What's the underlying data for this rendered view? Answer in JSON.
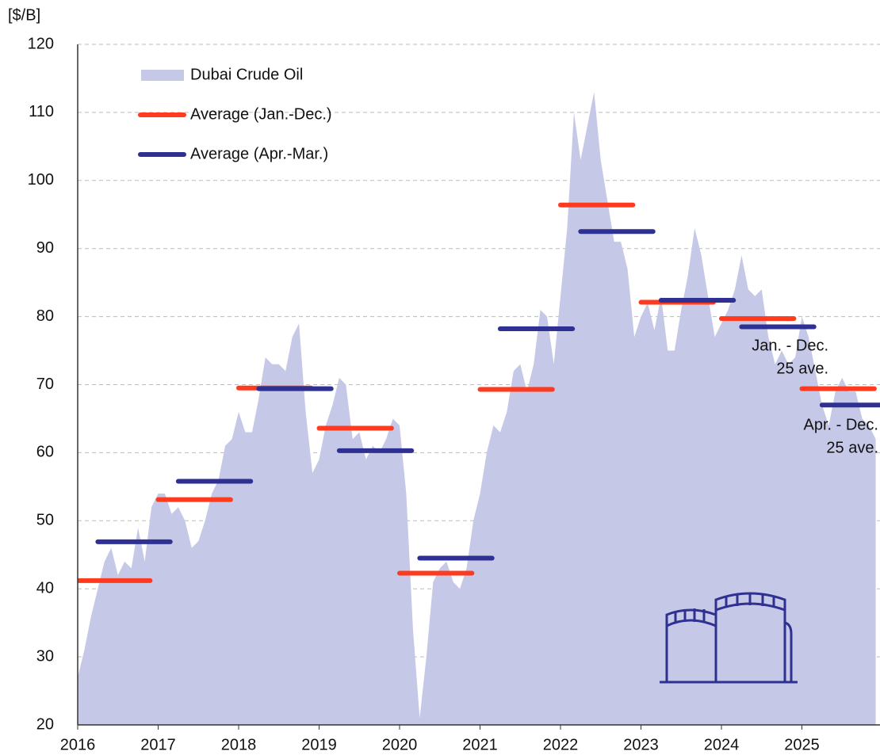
{
  "chart_data": {
    "type": "area",
    "y_unit": "[$/B]",
    "xlim": [
      2016,
      2026
    ],
    "xticks": [
      2016,
      2017,
      2018,
      2019,
      2020,
      2021,
      2022,
      2023,
      2024,
      2025
    ],
    "ylim": [
      20,
      120
    ],
    "yticks": [
      20,
      30,
      40,
      50,
      60,
      70,
      80,
      90,
      100,
      110,
      120
    ],
    "grid": true,
    "legend": "upper left",
    "x": [
      2016,
      2016.083,
      2016.167,
      2016.25,
      2016.333,
      2016.417,
      2016.5,
      2016.583,
      2016.667,
      2016.75,
      2016.833,
      2016.917,
      2017,
      2017.083,
      2017.167,
      2017.25,
      2017.333,
      2017.417,
      2017.5,
      2017.583,
      2017.667,
      2017.75,
      2017.833,
      2017.917,
      2018,
      2018.083,
      2018.167,
      2018.25,
      2018.333,
      2018.417,
      2018.5,
      2018.583,
      2018.667,
      2018.75,
      2018.833,
      2018.917,
      2019,
      2019.083,
      2019.167,
      2019.25,
      2019.333,
      2019.417,
      2019.5,
      2019.583,
      2019.667,
      2019.75,
      2019.833,
      2019.917,
      2020,
      2020.083,
      2020.167,
      2020.25,
      2020.333,
      2020.417,
      2020.5,
      2020.583,
      2020.667,
      2020.75,
      2020.833,
      2020.917,
      2021,
      2021.083,
      2021.167,
      2021.25,
      2021.333,
      2021.417,
      2021.5,
      2021.583,
      2021.667,
      2021.75,
      2021.833,
      2021.917,
      2022,
      2022.083,
      2022.167,
      2022.25,
      2022.333,
      2022.417,
      2022.5,
      2022.583,
      2022.667,
      2022.75,
      2022.833,
      2022.917,
      2023,
      2023.083,
      2023.167,
      2023.25,
      2023.333,
      2023.417,
      2023.5,
      2023.583,
      2023.667,
      2023.75,
      2023.833,
      2023.917,
      2024,
      2024.083,
      2024.167,
      2024.25,
      2024.333,
      2024.417,
      2024.5,
      2024.583,
      2024.667,
      2024.75,
      2024.833,
      2024.917,
      2025,
      2025.083,
      2025.167,
      2025.25,
      2025.333,
      2025.417,
      2025.5,
      2025.583,
      2025.667,
      2025.75,
      2025.833,
      2025.917
    ],
    "series": [
      {
        "name": "Dubai Crude Oil",
        "color": "#c6c8e7",
        "values": [
          27,
          31,
          36,
          40,
          44,
          46,
          42,
          44,
          43,
          49,
          44,
          52,
          54,
          54,
          51,
          52,
          50,
          46,
          47,
          50,
          54,
          56,
          61,
          62,
          66,
          63,
          63,
          68,
          74,
          73,
          73,
          72,
          77,
          79,
          66,
          57,
          59,
          64,
          67,
          71,
          70,
          62,
          63,
          59,
          61,
          60,
          62,
          65,
          64,
          54,
          34,
          21,
          30,
          41,
          43,
          44,
          41,
          40,
          43,
          50,
          54,
          60,
          64,
          63,
          66,
          72,
          73,
          69,
          73,
          81,
          80,
          73,
          83,
          93,
          110,
          103,
          108,
          113,
          103,
          97,
          91,
          91,
          87,
          77,
          80,
          82,
          78,
          83,
          75,
          75,
          81,
          86,
          93,
          89,
          83,
          77,
          79,
          81,
          84,
          89,
          84,
          83,
          84,
          77,
          73,
          75,
          73,
          74,
          80,
          77,
          72,
          67,
          64,
          69,
          71,
          69,
          69,
          65,
          64,
          62
        ]
      },
      {
        "name": "Average (Jan.-Dec.)",
        "color": "#ff3b1f",
        "type": "segments",
        "x": [
          2016,
          2017,
          2018,
          2019,
          2020,
          2021,
          2022,
          2023,
          2024,
          2025
        ],
        "values": [
          41.2,
          53.1,
          69.5,
          63.6,
          42.3,
          69.3,
          96.4,
          82.1,
          79.7,
          69.4
        ]
      },
      {
        "name": "Average (Apr.-Mar.)",
        "color": "#2e3192",
        "type": "segments",
        "x": [
          2016.25,
          2017.25,
          2018.25,
          2019.25,
          2020.25,
          2021.25,
          2022.25,
          2023.25,
          2024.25,
          2025.25
        ],
        "values": [
          46.9,
          55.8,
          69.4,
          60.3,
          44.5,
          78.2,
          92.5,
          82.4,
          78.5,
          67.0
        ]
      }
    ],
    "annotations": [
      {
        "lines": [
          "Jan. - Dec.",
          "25 ave."
        ],
        "color": "#ff3b1f"
      },
      {
        "lines": [
          "Apr. - Dec.",
          "25 ave."
        ],
        "color": "#2e3192"
      }
    ]
  }
}
